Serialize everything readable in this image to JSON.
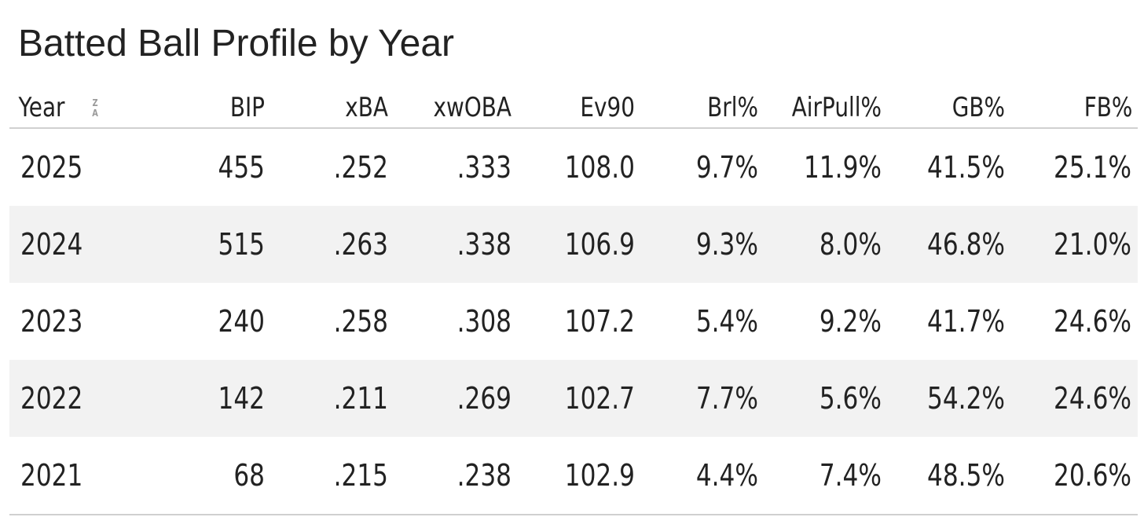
{
  "title": "Batted Ball Profile by Year",
  "sort_icon": {
    "name": "sort-za-icon",
    "top": "Z",
    "bottom": "A"
  },
  "colors": {
    "text": "#222222",
    "row_alt": "#f2f2f2",
    "rule": "#d0d0d0"
  },
  "chart_data": {
    "type": "table",
    "title": "Batted Ball Profile by Year",
    "columns": [
      "Year",
      "BIP",
      "xBA",
      "xwOBA",
      "Ev90",
      "Brl%",
      "AirPull%",
      "GB%",
      "FB%"
    ],
    "rows": [
      [
        "2025",
        "455",
        ".252",
        ".333",
        "108.0",
        "9.7%",
        "11.9%",
        "41.5%",
        "25.1%"
      ],
      [
        "2024",
        "515",
        ".263",
        ".338",
        "106.9",
        "9.3%",
        "8.0%",
        "46.8%",
        "21.0%"
      ],
      [
        "2023",
        "240",
        ".258",
        ".308",
        "107.2",
        "5.4%",
        "9.2%",
        "41.7%",
        "24.6%"
      ],
      [
        "2022",
        "142",
        ".211",
        ".269",
        "102.7",
        "7.7%",
        "5.6%",
        "54.2%",
        "24.6%"
      ],
      [
        "2021",
        "68",
        ".215",
        ".238",
        "102.9",
        "4.4%",
        "7.4%",
        "48.5%",
        "20.6%"
      ]
    ]
  }
}
